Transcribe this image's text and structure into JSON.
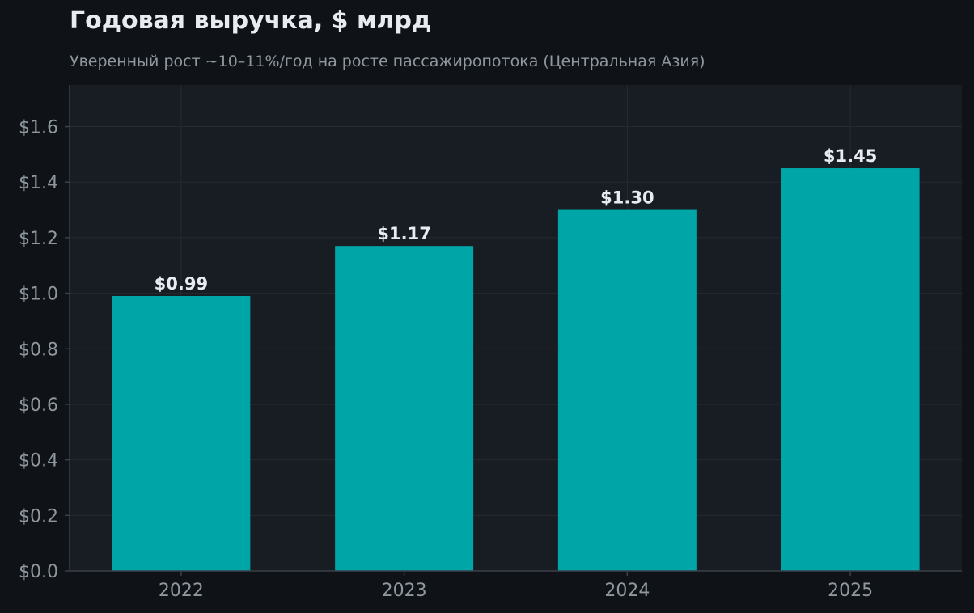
{
  "chart_data": {
    "type": "bar",
    "title": "Годовая выручка, $ млрд",
    "subtitle": "Уверенный рост ~10–11%/год на росте пассажиропотока (Центральная Азия)",
    "xlabel": "",
    "ylabel": "",
    "categories": [
      "2022",
      "2023",
      "2024",
      "2025"
    ],
    "values": [
      0.99,
      1.17,
      1.3,
      1.45
    ],
    "value_labels": [
      "$0.99",
      "$1.17",
      "$1.30",
      "$1.45"
    ],
    "ylim": [
      0,
      1.75
    ],
    "yticks": [
      0.0,
      0.2,
      0.4,
      0.6,
      0.8,
      1.0,
      1.2,
      1.4,
      1.6
    ],
    "ytick_labels": [
      "$0.0",
      "$0.2",
      "$0.4",
      "$0.6",
      "$0.8",
      "$1.0",
      "$1.2",
      "$1.4",
      "$1.6"
    ],
    "grid": true,
    "legend": "none",
    "colors": {
      "bar": "#00a5a8",
      "background": "#0f1317",
      "plot_background": "#181c23",
      "grid": "#262b33",
      "axis": "#3a4048",
      "tick_text": "#8f979f",
      "value_text": "#e8ecf1"
    }
  }
}
